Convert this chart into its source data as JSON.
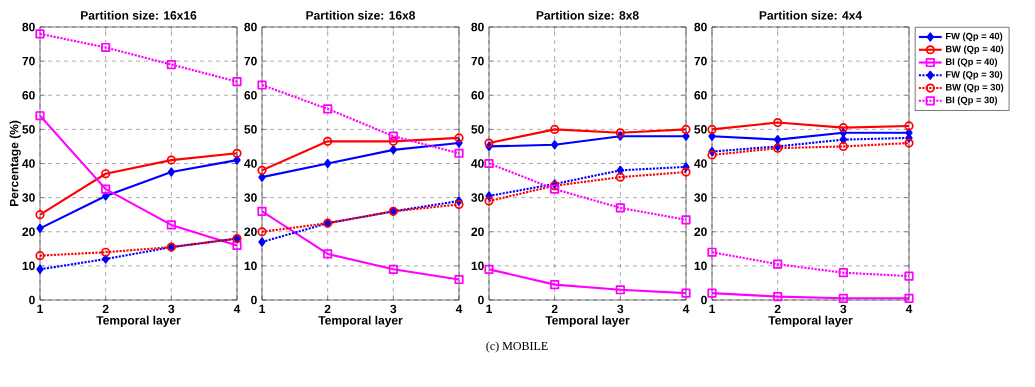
{
  "chart_data": [
    {
      "type": "line",
      "title": "Partition size: 16x16",
      "xlabel": "Temporal layer",
      "ylabel": "Percentage (%)",
      "annotations": [
        "(c) MOBILE"
      ],
      "x": [
        1,
        2,
        3,
        4
      ],
      "xlim": [
        1,
        4
      ],
      "xticks": [
        1,
        2,
        3,
        4
      ],
      "ylim": [
        0,
        80
      ],
      "yticks": [
        0,
        10,
        20,
        30,
        40,
        50,
        60,
        70,
        80
      ],
      "grid": true,
      "series": [
        {
          "color": "#0000ff",
          "marker": "diamond",
          "line_style": "solid",
          "values": [
            21,
            30.5,
            37.5,
            41
          ]
        },
        {
          "color": "#ff0000",
          "marker": "circle",
          "line_style": "solid",
          "values": [
            25,
            37,
            41,
            43
          ]
        },
        {
          "color": "#ff00ff",
          "marker": "square",
          "line_style": "solid",
          "values": [
            54,
            32.5,
            22,
            16
          ]
        },
        {
          "color": "#0000ff",
          "marker": "diamond",
          "line_style": "dotted",
          "values": [
            9,
            12,
            15.5,
            18
          ]
        },
        {
          "color": "#ff0000",
          "marker": "circle",
          "line_style": "dotted",
          "values": [
            13,
            14,
            15.5,
            18
          ]
        },
        {
          "color": "#ff00ff",
          "marker": "square",
          "line_style": "dotted",
          "values": [
            78,
            74,
            69,
            64
          ]
        }
      ]
    },
    {
      "type": "line",
      "title": "Partition size: 16x8",
      "xlabel": "Temporal layer",
      "x": [
        1,
        2,
        3,
        4
      ],
      "xlim": [
        1,
        4
      ],
      "xticks": [
        1,
        2,
        3,
        4
      ],
      "ylim": [
        0,
        80
      ],
      "yticks": [
        0,
        10,
        20,
        30,
        40,
        50,
        60,
        70,
        80
      ],
      "grid": true,
      "series": [
        {
          "color": "#0000ff",
          "marker": "diamond",
          "line_style": "solid",
          "values": [
            36,
            40,
            44,
            46
          ]
        },
        {
          "color": "#ff0000",
          "marker": "circle",
          "line_style": "solid",
          "values": [
            38,
            46.5,
            46.5,
            47.5
          ]
        },
        {
          "color": "#ff00ff",
          "marker": "square",
          "line_style": "solid",
          "values": [
            26,
            13.5,
            9,
            6
          ]
        },
        {
          "color": "#0000ff",
          "marker": "diamond",
          "line_style": "dotted",
          "values": [
            17,
            22.5,
            26,
            29
          ]
        },
        {
          "color": "#ff0000",
          "marker": "circle",
          "line_style": "dotted",
          "values": [
            20,
            22.5,
            26,
            28
          ]
        },
        {
          "color": "#ff00ff",
          "marker": "square",
          "line_style": "dotted",
          "values": [
            63,
            56,
            48,
            43
          ]
        }
      ]
    },
    {
      "type": "line",
      "title": "Partition size: 8x8",
      "xlabel": "Temporal layer",
      "x": [
        1,
        2,
        3,
        4
      ],
      "xlim": [
        1,
        4
      ],
      "xticks": [
        1,
        2,
        3,
        4
      ],
      "ylim": [
        0,
        80
      ],
      "yticks": [
        0,
        10,
        20,
        30,
        40,
        50,
        60,
        70,
        80
      ],
      "grid": true,
      "series": [
        {
          "color": "#0000ff",
          "marker": "diamond",
          "line_style": "solid",
          "values": [
            45,
            45.5,
            48,
            48
          ]
        },
        {
          "color": "#ff0000",
          "marker": "circle",
          "line_style": "solid",
          "values": [
            46,
            50,
            49,
            50
          ]
        },
        {
          "color": "#ff00ff",
          "marker": "square",
          "line_style": "solid",
          "values": [
            9,
            4.5,
            3,
            2
          ]
        },
        {
          "color": "#0000ff",
          "marker": "diamond",
          "line_style": "dotted",
          "values": [
            30.5,
            34,
            38,
            39
          ]
        },
        {
          "color": "#ff0000",
          "marker": "circle",
          "line_style": "dotted",
          "values": [
            29,
            33.5,
            36,
            37.5
          ]
        },
        {
          "color": "#ff00ff",
          "marker": "square",
          "line_style": "dotted",
          "values": [
            40,
            32.5,
            27,
            23.5
          ]
        }
      ]
    },
    {
      "type": "line",
      "title": "Partition size: 4x4",
      "xlabel": "Temporal layer",
      "x": [
        1,
        2,
        3,
        4
      ],
      "xlim": [
        1,
        4
      ],
      "xticks": [
        1,
        2,
        3,
        4
      ],
      "ylim": [
        0,
        80
      ],
      "yticks": [
        0,
        10,
        20,
        30,
        40,
        50,
        60,
        70,
        80
      ],
      "grid": true,
      "legend": "right",
      "series": [
        {
          "name": "FW (Qp = 40)",
          "color": "#0000ff",
          "marker": "diamond",
          "line_style": "solid",
          "values": [
            48,
            47,
            49,
            49
          ]
        },
        {
          "name": "BW (Qp = 40)",
          "color": "#ff0000",
          "marker": "circle",
          "line_style": "solid",
          "values": [
            50,
            52,
            50.5,
            51
          ]
        },
        {
          "name": "BI (Qp = 40)",
          "color": "#ff00ff",
          "marker": "square",
          "line_style": "solid",
          "values": [
            2,
            1,
            0.5,
            0.5
          ]
        },
        {
          "name": "FW (Qp = 30)",
          "color": "#0000ff",
          "marker": "diamond",
          "line_style": "dotted",
          "values": [
            43.5,
            45,
            47,
            47.5
          ]
        },
        {
          "name": "BW (Qp = 30)",
          "color": "#ff0000",
          "marker": "circle",
          "line_style": "dotted",
          "values": [
            42.5,
            44.5,
            45,
            46
          ]
        },
        {
          "name": "BI (Qp = 30)",
          "color": "#ff00ff",
          "marker": "square",
          "line_style": "dotted",
          "values": [
            14,
            10.5,
            8,
            7
          ]
        }
      ]
    }
  ]
}
